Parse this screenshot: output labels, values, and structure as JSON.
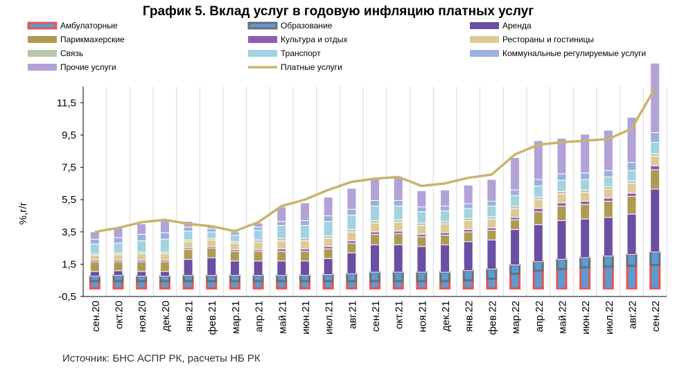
{
  "chart_data": {
    "type": "bar",
    "title": "График 5. Вклад услуг в годовую инфляцию платных услуг",
    "ylabel": "%,г/г",
    "ylim": [
      -0.5,
      12.5
    ],
    "yticks": [
      -0.5,
      1.5,
      3.5,
      5.5,
      7.5,
      9.5,
      11.5
    ],
    "ytick_labels": [
      "-0,5",
      "1,5",
      "3,5",
      "5,5",
      "7,5",
      "9,5",
      "11,5"
    ],
    "grid": "vertical",
    "legend_position": "top",
    "source": "Источник: БНС АСПР РК, расчеты НБ РК",
    "categories": [
      "сен.20",
      "окт.20",
      "ноя.20",
      "дек.20",
      "янв.21",
      "фев.21",
      "мар.21",
      "апр.21",
      "май.21",
      "июн.21",
      "июл.21",
      "авг.21",
      "сен.21",
      "окт.21",
      "ноя.21",
      "дек.21",
      "янв.22",
      "фев.22",
      "мар.22",
      "апр.22",
      "май.22",
      "июн.22",
      "июл.22",
      "авг.22",
      "сен.22"
    ],
    "series": [
      {
        "name": "Амбулаторные",
        "color": "#E8534E",
        "values": [
          0.45,
          0.45,
          0.45,
          0.45,
          0.45,
          0.45,
          0.45,
          0.45,
          0.45,
          0.45,
          0.45,
          0.45,
          0.45,
          0.45,
          0.45,
          0.45,
          0.5,
          0.6,
          0.9,
          1.1,
          1.2,
          1.3,
          1.35,
          1.4,
          1.45
        ]
      },
      {
        "name": "Образование",
        "color": "#6D6E70",
        "values": [
          0.3,
          0.35,
          0.3,
          0.3,
          0.35,
          0.35,
          0.35,
          0.35,
          0.35,
          0.35,
          0.4,
          0.45,
          0.55,
          0.55,
          0.55,
          0.55,
          0.6,
          0.6,
          0.55,
          0.55,
          0.6,
          0.6,
          0.65,
          0.7,
          0.8
        ]
      },
      {
        "name": "Аренда",
        "color": "#6A4FA3",
        "values": [
          0.3,
          0.3,
          0.3,
          0.3,
          1.0,
          1.1,
          0.9,
          0.9,
          0.9,
          0.9,
          1.0,
          1.3,
          1.7,
          1.7,
          1.6,
          1.7,
          1.8,
          1.8,
          2.2,
          2.3,
          2.4,
          2.4,
          2.4,
          2.5,
          3.9
        ]
      },
      {
        "name": "Парикмахерские",
        "color": "#B09A53",
        "values": [
          0.6,
          0.55,
          0.6,
          0.6,
          0.6,
          0.6,
          0.6,
          0.6,
          0.6,
          0.6,
          0.6,
          0.6,
          0.65,
          0.7,
          0.6,
          0.6,
          0.6,
          0.6,
          0.6,
          0.8,
          0.9,
          0.9,
          1.0,
          1.1,
          1.2
        ]
      },
      {
        "name": "Культура и отдых",
        "color": "#8E5CB5",
        "values": [
          0.1,
          0.1,
          0.1,
          0.1,
          0.1,
          0.1,
          0.1,
          0.1,
          0.15,
          0.15,
          0.15,
          0.15,
          0.15,
          0.15,
          0.15,
          0.15,
          0.15,
          0.15,
          0.15,
          0.2,
          0.2,
          0.2,
          0.2,
          0.2,
          0.25
        ]
      },
      {
        "name": "Рестораны и гостиницы",
        "color": "#DDCB97",
        "values": [
          0.3,
          0.35,
          0.4,
          0.4,
          0.4,
          0.4,
          0.4,
          0.45,
          0.5,
          0.5,
          0.5,
          0.55,
          0.55,
          0.55,
          0.55,
          0.55,
          0.55,
          0.55,
          0.55,
          0.55,
          0.55,
          0.55,
          0.55,
          0.6,
          0.6
        ]
      },
      {
        "name": "Связь",
        "color": "#B7C7A9",
        "values": [
          0.1,
          0.1,
          0.1,
          0.1,
          0.1,
          0.1,
          0.1,
          0.15,
          0.15,
          0.15,
          0.15,
          0.15,
          0.15,
          0.15,
          0.15,
          0.15,
          0.15,
          0.15,
          0.15,
          0.15,
          0.15,
          0.15,
          0.15,
          0.15,
          0.15
        ]
      },
      {
        "name": "Транспорт",
        "color": "#A3D2E0",
        "values": [
          0.6,
          0.6,
          0.7,
          0.8,
          0.55,
          0.4,
          0.4,
          0.6,
          0.8,
          0.8,
          0.9,
          0.9,
          0.9,
          0.85,
          0.7,
          0.65,
          0.6,
          0.65,
          0.65,
          0.7,
          0.7,
          0.65,
          0.6,
          0.65,
          0.7
        ]
      },
      {
        "name": "Коммунальные регулируемые услуги",
        "color": "#9CB0DC",
        "values": [
          0.3,
          0.35,
          0.4,
          0.4,
          0.25,
          0.2,
          0.2,
          0.2,
          0.25,
          0.3,
          0.35,
          0.35,
          0.35,
          0.35,
          0.3,
          0.3,
          0.3,
          0.3,
          0.35,
          0.4,
          0.4,
          0.4,
          0.4,
          0.5,
          0.6
        ]
      },
      {
        "name": "Прочие услуги",
        "color": "#B2A2D8",
        "values": [
          0.45,
          0.6,
          0.65,
          0.85,
          0.35,
          0.2,
          0.15,
          0.25,
          0.9,
          1.1,
          1.15,
          1.3,
          1.4,
          1.5,
          1.0,
          1.0,
          1.15,
          1.35,
          2.0,
          2.4,
          2.2,
          2.4,
          2.5,
          2.8,
          4.3
        ]
      },
      {
        "name": "Платные услуги",
        "color": "#C8B56A",
        "type": "line",
        "values": [
          3.5,
          3.75,
          4.1,
          4.25,
          4.0,
          3.85,
          3.55,
          4.1,
          5.1,
          5.5,
          6.1,
          6.6,
          6.8,
          6.9,
          6.35,
          6.5,
          6.85,
          7.05,
          8.3,
          8.9,
          9.05,
          9.15,
          9.25,
          9.9,
          12.4
        ]
      }
    ]
  }
}
